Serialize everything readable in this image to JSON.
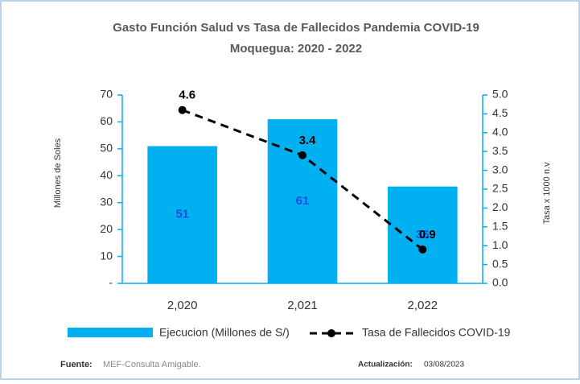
{
  "chart_data": {
    "type": "bar",
    "title": "Gasto Función Salud vs Tasa de Fallecidos Pandemia COVID-19",
    "subtitle": "Moquegua: 2020 - 2022",
    "y_label": "Millones de Soles",
    "y2_label": "Tasa x 1000 n.v",
    "categories": [
      "2,020",
      "2,021",
      "2,022"
    ],
    "series": [
      {
        "name": "Ejecucion (Millones de S/)",
        "type": "bar",
        "color": "#00b0f0",
        "label_color": "#1f4fe0",
        "values": [
          51,
          61,
          36
        ]
      },
      {
        "name": "Tasa de Fallecidos COVID-19",
        "type": "line",
        "axis": "y2",
        "color": "#000000",
        "values": [
          4.6,
          3.4,
          0.9
        ]
      }
    ],
    "ylim": [
      0,
      70
    ],
    "yticks": [
      {
        "value": 0,
        "label": "-"
      },
      10,
      20,
      30,
      40,
      50,
      60,
      70
    ],
    "y2lim": [
      0,
      5
    ],
    "y2ticks": [
      {
        "value": 0,
        "label": "0.0"
      },
      0.5,
      {
        "value": 1,
        "label": "1.0"
      },
      1.5,
      {
        "value": 2,
        "label": "2.0"
      },
      2.5,
      {
        "value": 3,
        "label": "3.0"
      },
      3.5,
      {
        "value": 4,
        "label": "4.0"
      },
      4.5,
      {
        "value": 5,
        "label": "5.0"
      }
    ],
    "grid": false,
    "legend": "bottom"
  },
  "footer": {
    "source_label": "Fuente:",
    "source": "MEF-Consulta Amigable.",
    "update_label": "Actualización:",
    "update": "03/08/2023"
  }
}
